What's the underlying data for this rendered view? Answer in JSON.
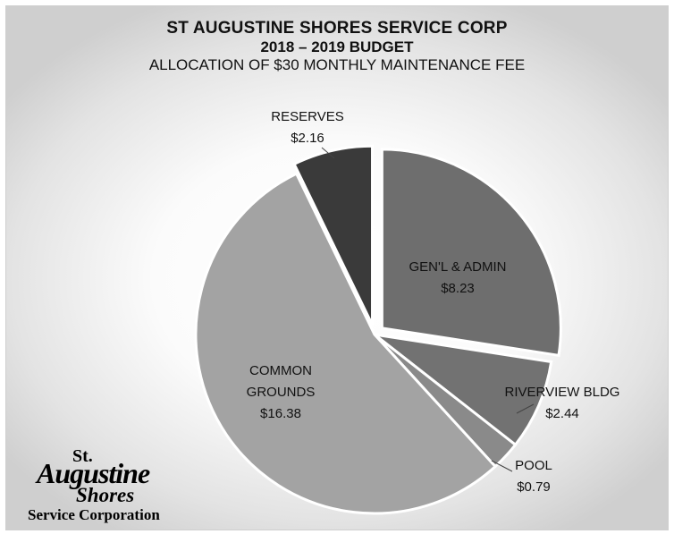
{
  "chart_data": {
    "type": "pie",
    "title": "ST AUGUSTINE SHORES SERVICE CORP",
    "subtitle": "2018 – 2019  BUDGET",
    "subtitle2": "ALLOCATION OF $30 MONTHLY MAINTENANCE FEE",
    "slices": [
      {
        "lines": [
          "GEN'L & ADMIN",
          "$8.23"
        ],
        "value": 8.23,
        "color": "#6e6e6e",
        "exploded": true
      },
      {
        "lines": [
          "RIVERVIEW BLDG",
          "$2.44"
        ],
        "value": 2.44,
        "color": "#727272",
        "exploded": false
      },
      {
        "lines": [
          "POOL",
          "$0.79"
        ],
        "value": 0.79,
        "color": "#8a8a8a",
        "exploded": false
      },
      {
        "lines": [
          "COMMON",
          "GROUNDS",
          "$16.38"
        ],
        "value": 16.38,
        "color": "#a3a3a3",
        "exploded": false
      },
      {
        "lines": [
          "RESERVES",
          "$2.16"
        ],
        "value": 2.16,
        "color": "#3a3a3a",
        "exploded": true
      }
    ]
  },
  "logo": {
    "line1": "St.",
    "line2": "Augustine",
    "line3": "Shores",
    "line4": "Service Corporation"
  }
}
